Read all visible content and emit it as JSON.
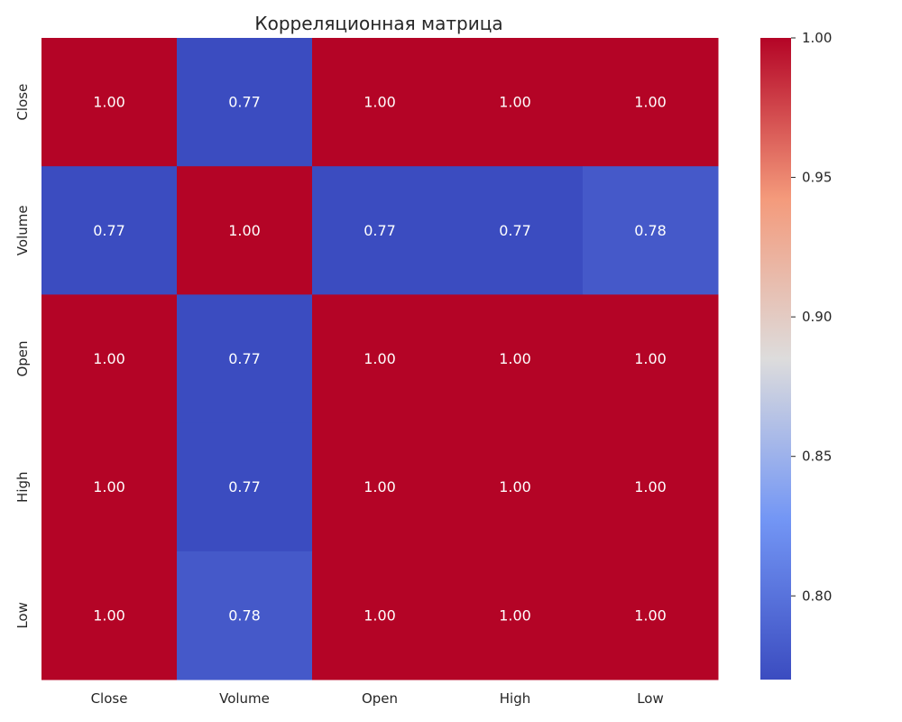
{
  "chart_data": {
    "type": "heatmap",
    "title": "Корреляционная матрица",
    "x_categories": [
      "Close",
      "Volume",
      "Open",
      "High",
      "Low"
    ],
    "y_categories": [
      "Close",
      "Volume",
      "Open",
      "High",
      "Low"
    ],
    "values": [
      [
        1.0,
        0.77,
        1.0,
        1.0,
        1.0
      ],
      [
        0.77,
        1.0,
        0.77,
        0.77,
        0.78
      ],
      [
        1.0,
        0.77,
        1.0,
        1.0,
        1.0
      ],
      [
        1.0,
        0.77,
        1.0,
        1.0,
        1.0
      ],
      [
        1.0,
        0.78,
        1.0,
        1.0,
        1.0
      ]
    ],
    "cell_labels": [
      [
        "1.00",
        "0.77",
        "1.00",
        "1.00",
        "1.00"
      ],
      [
        "0.77",
        "1.00",
        "0.77",
        "0.77",
        "0.78"
      ],
      [
        "1.00",
        "0.77",
        "1.00",
        "1.00",
        "1.00"
      ],
      [
        "1.00",
        "0.77",
        "1.00",
        "1.00",
        "1.00"
      ],
      [
        "1.00",
        "0.78",
        "1.00",
        "1.00",
        "1.00"
      ]
    ],
    "colormap": "coolwarm",
    "color_range": [
      0.77,
      1.0
    ],
    "colorbar": {
      "ticks": [
        0.8,
        0.85,
        0.9,
        0.95,
        1.0
      ],
      "tick_labels": [
        "0.80",
        "0.85",
        "0.90",
        "0.95",
        "1.00"
      ],
      "placement": "right"
    }
  }
}
